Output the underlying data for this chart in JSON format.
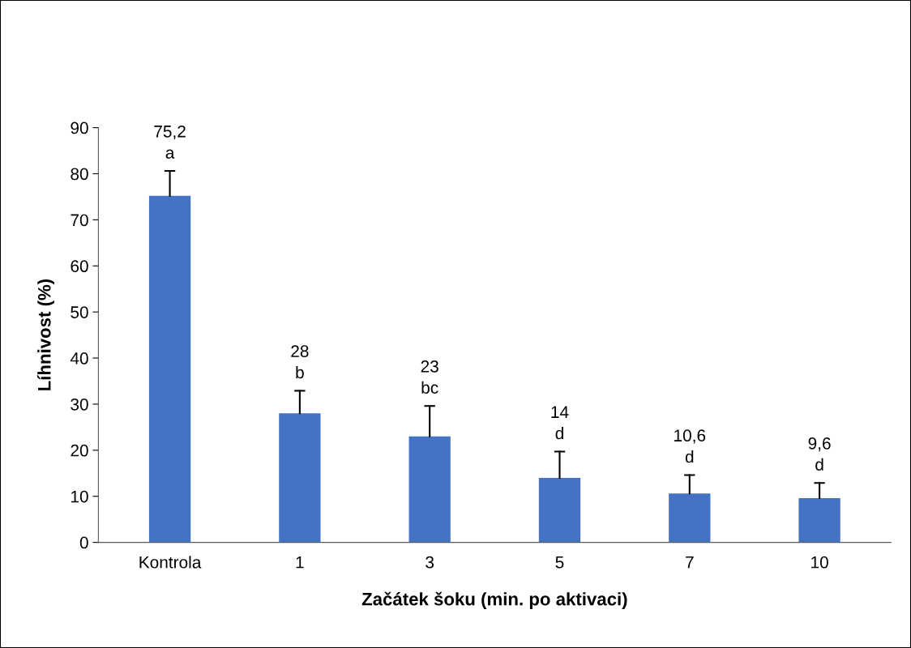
{
  "chart_data": {
    "type": "bar",
    "xlabel": "Začátek šoku (min. po aktivaci)",
    "ylabel": "Líhnivost (%)",
    "categories": [
      "Kontrola",
      "1",
      "3",
      "5",
      "7",
      "10"
    ],
    "values": [
      75.2,
      28,
      23,
      14,
      10.6,
      9.6
    ],
    "color": "#4472c4",
    "errors": [
      [
        75.2,
        80.6
      ],
      [
        28,
        32.9
      ],
      [
        23,
        29.6
      ],
      [
        14,
        19.7
      ],
      [
        10.6,
        14.6
      ],
      [
        9.6,
        12.9
      ]
    ],
    "value_labels": [
      "75,2\na",
      "28\nb",
      "23\nbc",
      "14\nd",
      "10,6\nd",
      "9,6\nd"
    ],
    "ylim": [
      0,
      90
    ],
    "yticks": [
      0,
      10,
      20,
      30,
      40,
      50,
      60,
      70,
      80,
      90
    ],
    "grid": false,
    "legend": false
  }
}
